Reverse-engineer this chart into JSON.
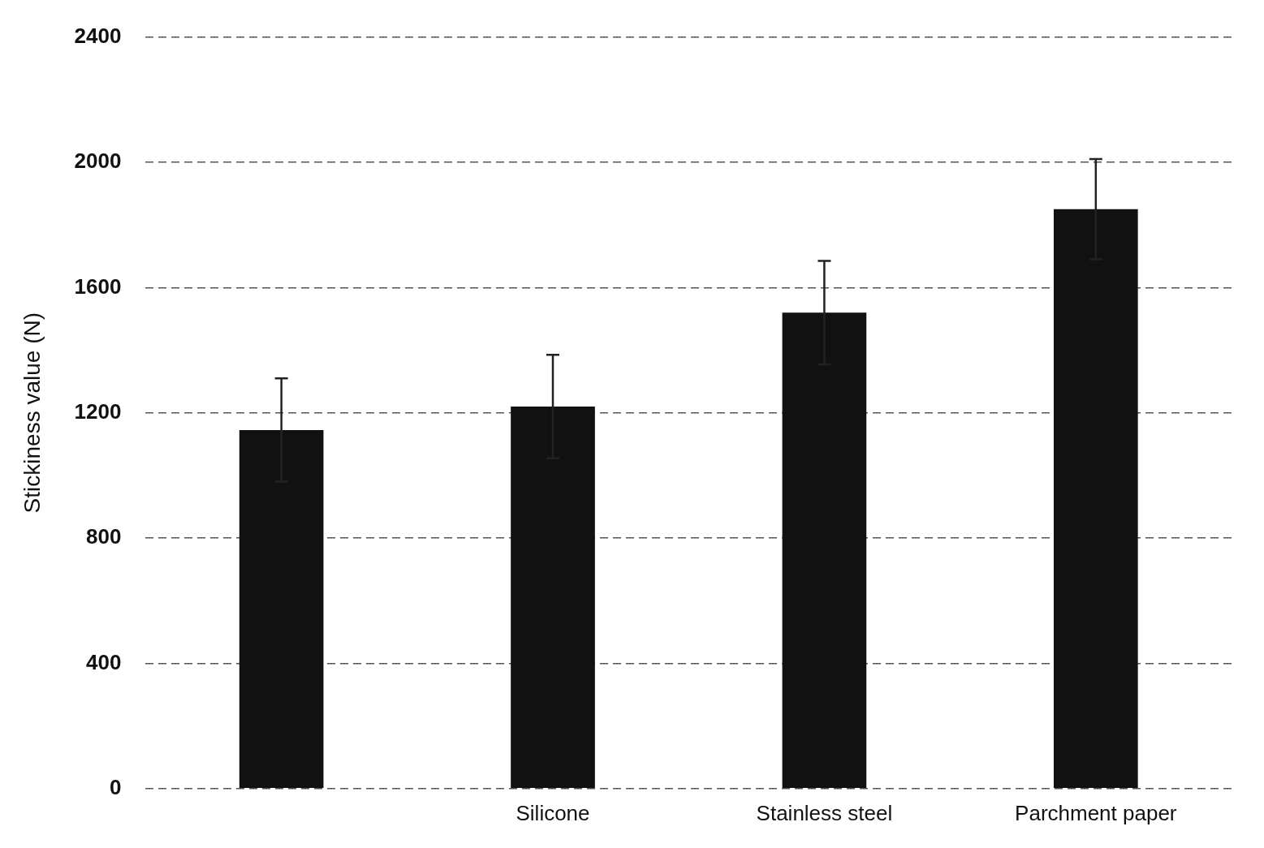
{
  "chart_data": {
    "type": "bar",
    "ylabel": "Stickiness value (N)",
    "categories": [
      null,
      "Silicone",
      "Stainless steel",
      "Parchment paper"
    ],
    "values": [
      1145,
      1220,
      1520,
      1850
    ],
    "errors": [
      165,
      165,
      165,
      160
    ],
    "color": "#111111",
    "ylim": [
      0,
      2400
    ],
    "yticks": [
      0,
      400,
      800,
      1200,
      1600,
      2000,
      2400
    ],
    "grid": "y",
    "legend": false
  }
}
